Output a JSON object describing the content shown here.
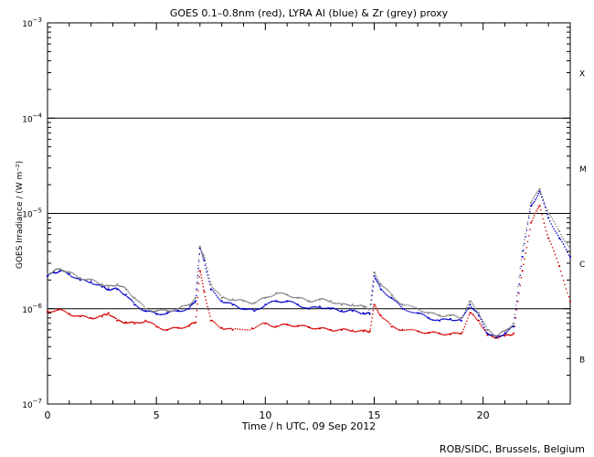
{
  "chart_data": {
    "type": "scatter",
    "title": "GOES 0.1–0.8nm (red), LYRA Al (blue) & Zr (grey) proxy",
    "xlabel": "Time / h UTC, 09 Sep 2012",
    "ylabel": "GOES Irradiance / (W m⁻²)",
    "xlim": [
      0,
      24
    ],
    "ylim": [
      1e-07,
      0.001
    ],
    "yscale": "log",
    "x_ticks": [
      0,
      5,
      10,
      15,
      20
    ],
    "x_tick_labels": [
      "0",
      "5",
      "10",
      "15",
      "20"
    ],
    "y_ticks": [
      1e-07,
      1e-06,
      1e-05,
      0.0001,
      0.001
    ],
    "y_tick_labels": [
      {
        "base": "10",
        "exp": "−7"
      },
      {
        "base": "10",
        "exp": "−6"
      },
      {
        "base": "10",
        "exp": "−5"
      },
      {
        "base": "10",
        "exp": "−4"
      },
      {
        "base": "10",
        "exp": "−3"
      }
    ],
    "flare_class_lines": [
      1e-06,
      1e-05,
      0.0001
    ],
    "flare_classes": [
      {
        "label": "X",
        "y": 0.0003
      },
      {
        "label": "M",
        "y": 3e-05
      },
      {
        "label": "C",
        "y": 3e-06
      },
      {
        "label": "B",
        "y": 3e-07
      }
    ],
    "series": [
      {
        "color": "#d40000",
        "x": [
          0,
          0.5,
          1,
          1.5,
          2,
          2.5,
          2.8,
          3.2,
          3.6,
          4,
          4.5,
          5,
          5.5,
          6,
          6.5,
          6.8,
          7.0,
          7.2,
          7.5,
          8,
          8.5,
          9.4,
          10,
          10.5,
          11,
          11.5,
          12,
          12.5,
          13,
          13.5,
          14,
          14.5,
          14.8,
          15.0,
          15.3,
          15.8,
          16.3,
          17,
          17.5,
          18,
          18.5,
          19,
          19.4,
          19.8,
          20.2,
          20.6,
          21,
          21.4,
          21.8,
          22.2,
          22.6,
          23,
          23.5,
          24
        ],
        "y": [
          9.3e-07,
          9.8e-07,
          8.8e-07,
          8.3e-07,
          8e-07,
          8.3e-07,
          9e-07,
          7.5e-07,
          7.2e-07,
          7e-07,
          7.5e-07,
          6.5e-07,
          6e-07,
          6.3e-07,
          6.6e-07,
          7.2e-07,
          2.5e-06,
          1.5e-06,
          7.5e-07,
          6.3e-07,
          6e-07,
          6.2e-07,
          7e-07,
          6.5e-07,
          6.8e-07,
          6.6e-07,
          6.4e-07,
          6.2e-07,
          6e-07,
          6e-07,
          5.9e-07,
          5.8e-07,
          5.8e-07,
          1.1e-06,
          8.5e-07,
          6.5e-07,
          6e-07,
          5.8e-07,
          5.6e-07,
          5.5e-07,
          5.4e-07,
          5.5e-07,
          9e-07,
          7.5e-07,
          5.3e-07,
          5e-07,
          5.2e-07,
          5.5e-07,
          2.5e-06,
          8e-06,
          1.2e-05,
          5.5e-06,
          2.8e-06,
          1.2e-06
        ]
      },
      {
        "color": "#0000c8",
        "x": [
          0,
          0.3,
          0.6,
          1,
          1.5,
          2,
          2.5,
          2.8,
          3.2,
          3.6,
          4,
          4.5,
          5,
          5.5,
          6,
          6.5,
          6.8,
          7.0,
          7.2,
          7.5,
          8,
          8.5,
          9,
          9.5,
          10,
          10.5,
          11,
          11.5,
          12,
          12.5,
          13,
          13.5,
          14,
          14.5,
          14.8,
          15.0,
          15.3,
          15.8,
          16.3,
          17,
          17.5,
          18,
          18.5,
          19,
          19.4,
          19.8,
          20.2,
          20.6,
          21,
          21.4,
          21.8,
          22.2,
          22.6,
          23,
          23.5,
          24
        ],
        "y": [
          2.2e-06,
          2.4e-06,
          2.5e-06,
          2.3e-06,
          2e-06,
          1.9e-06,
          1.7e-06,
          1.6e-06,
          1.6e-06,
          1.4e-06,
          1.1e-06,
          9.5e-07,
          8.8e-07,
          9e-07,
          9.5e-07,
          1e-06,
          1.2e-06,
          4.3e-06,
          3.2e-06,
          1.6e-06,
          1.2e-06,
          1.1e-06,
          1e-06,
          9.5e-07,
          1.1e-06,
          1.2e-06,
          1.2e-06,
          1.1e-06,
          1e-06,
          1.05e-06,
          1e-06,
          9.5e-07,
          9.5e-07,
          9e-07,
          8.8e-07,
          2.2e-06,
          1.6e-06,
          1.3e-06,
          1e-06,
          9e-07,
          8e-07,
          7.5e-07,
          7.8e-07,
          7.5e-07,
          1.1e-06,
          8.5e-07,
          5.5e-07,
          5e-07,
          5.5e-07,
          6.5e-07,
          3.5e-06,
          1.2e-05,
          1.7e-05,
          9e-06,
          5.5e-06,
          3.5e-06
        ]
      },
      {
        "color": "#808080",
        "x": [
          0,
          0.3,
          0.6,
          1,
          1.5,
          2,
          2.5,
          2.8,
          3.2,
          3.6,
          4,
          4.5,
          5,
          5.5,
          6,
          6.5,
          6.8,
          7.0,
          7.2,
          7.5,
          8,
          8.5,
          9,
          9.5,
          10,
          10.5,
          11,
          11.5,
          12,
          12.5,
          13,
          13.5,
          14,
          14.5,
          14.8,
          15.0,
          15.3,
          15.8,
          16.3,
          17,
          17.5,
          18,
          18.5,
          19,
          19.4,
          19.8,
          20.2,
          20.6,
          21,
          21.4,
          21.8,
          22.2,
          22.6,
          23,
          23.5,
          24
        ],
        "y": [
          2.3e-06,
          2.5e-06,
          2.6e-06,
          2.4e-06,
          2.1e-06,
          2e-06,
          1.8e-06,
          1.7e-06,
          1.8e-06,
          1.6e-06,
          1.3e-06,
          1e-06,
          9.5e-07,
          9.5e-07,
          1e-06,
          1.1e-06,
          1.3e-06,
          4.5e-06,
          3.4e-06,
          1.8e-06,
          1.3e-06,
          1.25e-06,
          1.2e-06,
          1.15e-06,
          1.3e-06,
          1.45e-06,
          1.4e-06,
          1.3e-06,
          1.2e-06,
          1.25e-06,
          1.2e-06,
          1.1e-06,
          1.1e-06,
          1.05e-06,
          1e-06,
          2.4e-06,
          1.8e-06,
          1.4e-06,
          1.1e-06,
          1e-06,
          9e-07,
          8.5e-07,
          8.5e-07,
          8e-07,
          1.2e-06,
          9e-07,
          6e-07,
          5.2e-07,
          5.8e-07,
          7e-07,
          4e-06,
          1.3e-05,
          1.8e-05,
          1e-05,
          6.5e-06,
          4.2e-06
        ]
      }
    ]
  },
  "credit": "ROB/SIDC, Brussels, Belgium"
}
